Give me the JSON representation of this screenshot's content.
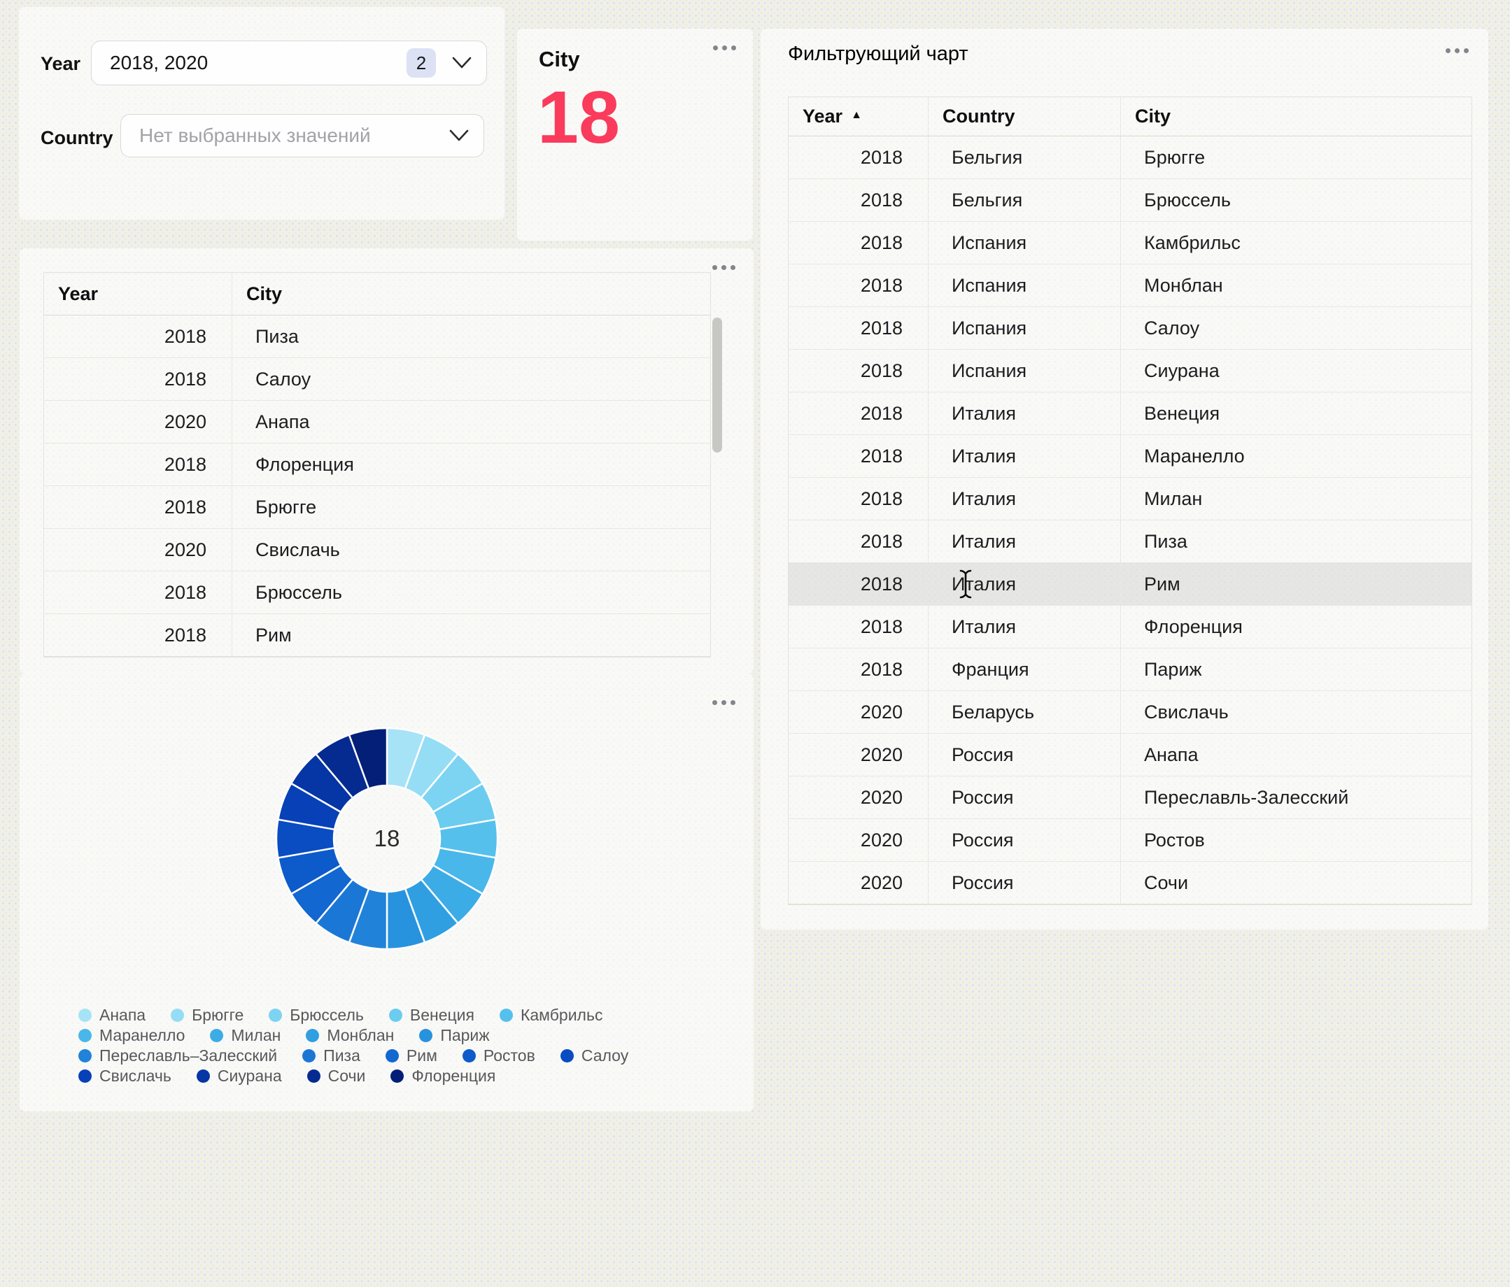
{
  "filters": {
    "year": {
      "label": "Year",
      "value": "2018, 2020",
      "count_badge": "2"
    },
    "country": {
      "label": "Country",
      "placeholder": "Нет выбранных значений"
    }
  },
  "metric_card": {
    "title": "City",
    "value": "18"
  },
  "filtering_chart": {
    "title": "Фильтрующий чарт",
    "columns": [
      "Year",
      "Country",
      "City"
    ],
    "sort_column": "Year",
    "sort_icon": "▲",
    "highlighted_row_index": 10,
    "rows": [
      {
        "year": "2018",
        "country": "Бельгия",
        "city": "Брюгге"
      },
      {
        "year": "2018",
        "country": "Бельгия",
        "city": "Брюссель"
      },
      {
        "year": "2018",
        "country": "Испания",
        "city": "Камбрильс"
      },
      {
        "year": "2018",
        "country": "Испания",
        "city": "Монблан"
      },
      {
        "year": "2018",
        "country": "Испания",
        "city": "Салоу"
      },
      {
        "year": "2018",
        "country": "Испания",
        "city": "Сиурана"
      },
      {
        "year": "2018",
        "country": "Италия",
        "city": "Венеция"
      },
      {
        "year": "2018",
        "country": "Италия",
        "city": "Маранелло"
      },
      {
        "year": "2018",
        "country": "Италия",
        "city": "Милан"
      },
      {
        "year": "2018",
        "country": "Италия",
        "city": "Пиза"
      },
      {
        "year": "2018",
        "country": "Италия",
        "city": "Рим"
      },
      {
        "year": "2018",
        "country": "Италия",
        "city": "Флоренция"
      },
      {
        "year": "2018",
        "country": "Франция",
        "city": "Париж"
      },
      {
        "year": "2020",
        "country": "Беларусь",
        "city": "Свислачь"
      },
      {
        "year": "2020",
        "country": "Россия",
        "city": "Анапа"
      },
      {
        "year": "2020",
        "country": "Россия",
        "city": "Переславль-Залесский"
      },
      {
        "year": "2020",
        "country": "Россия",
        "city": "Ростов"
      },
      {
        "year": "2020",
        "country": "Россия",
        "city": "Сочи"
      }
    ]
  },
  "left_table": {
    "columns": [
      "Year",
      "City"
    ],
    "rows": [
      {
        "year": "2018",
        "city": "Пиза"
      },
      {
        "year": "2018",
        "city": "Салоу"
      },
      {
        "year": "2020",
        "city": "Анапа"
      },
      {
        "year": "2018",
        "city": "Флоренция"
      },
      {
        "year": "2018",
        "city": "Брюгге"
      },
      {
        "year": "2020",
        "city": "Свислачь"
      },
      {
        "year": "2018",
        "city": "Брюссель"
      },
      {
        "year": "2018",
        "city": "Рим"
      }
    ]
  },
  "donut": {
    "center_label": "18",
    "slices": [
      {
        "name": "Анапа",
        "color": "#a7e3f7",
        "value": 1
      },
      {
        "name": "Брюгге",
        "color": "#95ddf5",
        "value": 1
      },
      {
        "name": "Брюссель",
        "color": "#7dd3f2",
        "value": 1
      },
      {
        "name": "Венеция",
        "color": "#6cccf0",
        "value": 1
      },
      {
        "name": "Камбрильс",
        "color": "#55c0ec",
        "value": 1
      },
      {
        "name": "Маранелло",
        "color": "#49b7e9",
        "value": 1
      },
      {
        "name": "Милан",
        "color": "#3cace6",
        "value": 1
      },
      {
        "name": "Монблан",
        "color": "#2f9fe2",
        "value": 1
      },
      {
        "name": "Париж",
        "color": "#2793de",
        "value": 1
      },
      {
        "name": "Переславль–Залесский",
        "color": "#2083d9",
        "value": 1
      },
      {
        "name": "Пиза",
        "color": "#1b77d5",
        "value": 1
      },
      {
        "name": "Рим",
        "color": "#1267d0",
        "value": 1
      },
      {
        "name": "Ростов",
        "color": "#0d5bca",
        "value": 1
      },
      {
        "name": "Салоу",
        "color": "#0a4cc2",
        "value": 1
      },
      {
        "name": "Свислачь",
        "color": "#0840b8",
        "value": 1
      },
      {
        "name": "Сиурана",
        "color": "#0635a5",
        "value": 1
      },
      {
        "name": "Сочи",
        "color": "#052b91",
        "value": 1
      },
      {
        "name": "Флоренция",
        "color": "#031f78",
        "value": 1
      }
    ],
    "legend_rows": [
      [
        0,
        1,
        2,
        3,
        4
      ],
      [
        5,
        6,
        7,
        8
      ],
      [
        9,
        10,
        11,
        12,
        13
      ],
      [
        14,
        15,
        16,
        17
      ]
    ]
  },
  "chart_data": {
    "type": "pie",
    "title": "",
    "labels": [
      "Анапа",
      "Брюгге",
      "Брюссель",
      "Венеция",
      "Камбрильс",
      "Маранелло",
      "Милан",
      "Монблан",
      "Париж",
      "Переславль–Залесский",
      "Пиза",
      "Рим",
      "Ростов",
      "Салоу",
      "Свислачь",
      "Сиурана",
      "Сочи",
      "Флоренция"
    ],
    "values": [
      1,
      1,
      1,
      1,
      1,
      1,
      1,
      1,
      1,
      1,
      1,
      1,
      1,
      1,
      1,
      1,
      1,
      1
    ],
    "center_label": "18",
    "legend_position": "bottom"
  },
  "colors": {
    "metric_value": "#fa3b5c",
    "page_background": "#f0f0ea",
    "highlight_row": "#e7e7e4",
    "badge_background": "#dce2f4"
  }
}
